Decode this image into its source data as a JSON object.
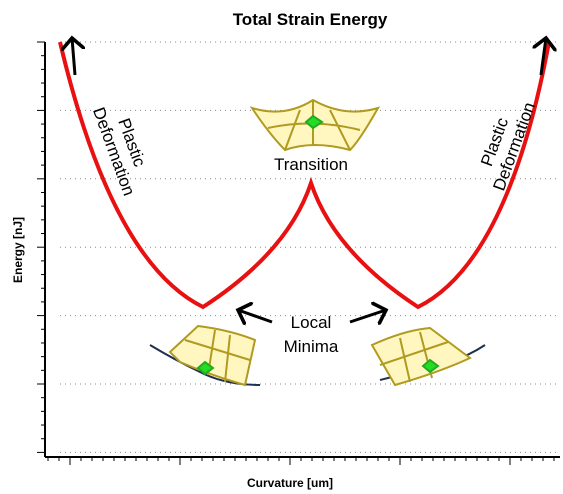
{
  "title": "Total Strain Energy",
  "x_axis_label": "Curvature [um]",
  "y_axis_label": "Energy [nJ]",
  "annotations": {
    "left_plastic": [
      "Plastic",
      "Deformation"
    ],
    "right_plastic": [
      "Plastic",
      "Deformation"
    ],
    "transition": "Transition",
    "local_minima": [
      "Local",
      "Minima"
    ]
  }
}
